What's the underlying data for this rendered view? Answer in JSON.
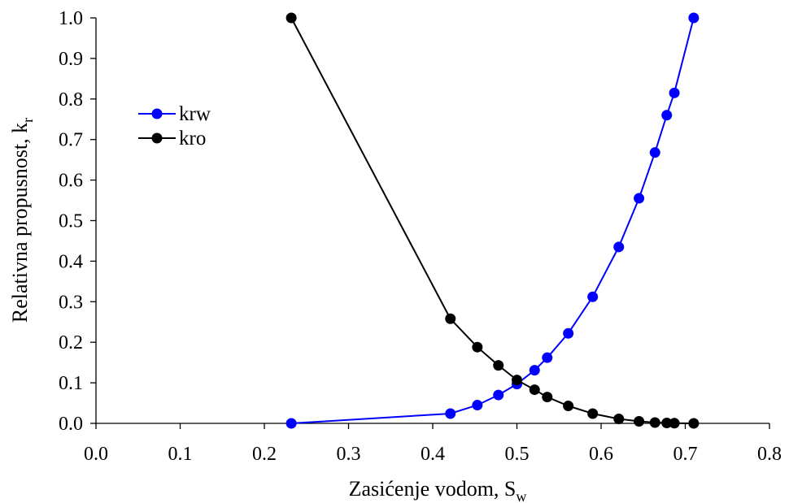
{
  "chart_data": {
    "type": "scatter",
    "title": "",
    "xlabel": "Zasićenje vodom, S",
    "xlabel_sub": "w",
    "ylabel": "Relativna propusnost, k",
    "ylabel_sub": "r",
    "xlim": [
      0.0,
      0.8
    ],
    "ylim": [
      0.0,
      1.0
    ],
    "xticks": [
      "0.0",
      "0.1",
      "0.2",
      "0.3",
      "0.4",
      "0.5",
      "0.6",
      "0.7",
      "0.8"
    ],
    "yticks": [
      "0.0",
      "0.1",
      "0.2",
      "0.3",
      "0.4",
      "0.5",
      "0.6",
      "0.7",
      "0.8",
      "0.9",
      "1.0"
    ],
    "grid": false,
    "legend_position": "upper-left",
    "series": [
      {
        "name": "krw",
        "color": "#0000ff",
        "marker": "circle",
        "x": [
          0.232,
          0.421,
          0.453,
          0.478,
          0.5,
          0.521,
          0.536,
          0.561,
          0.59,
          0.621,
          0.645,
          0.664,
          0.678,
          0.687,
          0.71
        ],
        "y": [
          0.0,
          0.024,
          0.045,
          0.07,
          0.097,
          0.131,
          0.162,
          0.222,
          0.312,
          0.435,
          0.555,
          0.668,
          0.76,
          0.815,
          1.0
        ]
      },
      {
        "name": "kro",
        "color": "#000000",
        "marker": "circle",
        "x": [
          0.232,
          0.421,
          0.453,
          0.478,
          0.5,
          0.521,
          0.536,
          0.561,
          0.59,
          0.621,
          0.645,
          0.664,
          0.678,
          0.687,
          0.71
        ],
        "y": [
          1.0,
          0.258,
          0.188,
          0.143,
          0.107,
          0.083,
          0.065,
          0.043,
          0.024,
          0.011,
          0.005,
          0.002,
          0.001,
          0.0005,
          0.0
        ]
      }
    ]
  }
}
